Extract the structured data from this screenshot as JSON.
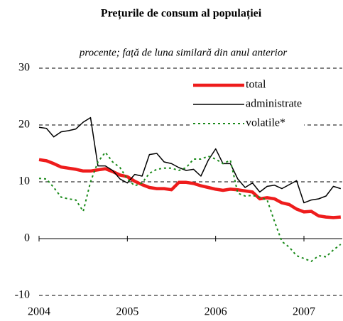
{
  "chart_data": {
    "type": "line",
    "title": "Prețurile de consum al populației",
    "subtitle": "procente; față de luna similară din anul anterior",
    "categories": [
      "2004",
      null,
      null,
      null,
      null,
      null,
      null,
      null,
      null,
      null,
      null,
      null,
      "2005",
      null,
      null,
      null,
      null,
      null,
      null,
      null,
      null,
      null,
      null,
      null,
      "2006",
      null,
      null,
      null,
      null,
      null,
      null,
      null,
      null,
      null,
      null,
      null,
      "2007",
      null,
      null,
      null,
      null,
      null
    ],
    "series": [
      {
        "name": "total",
        "color": "#ee1c1c",
        "width": 4.5,
        "dash": "none",
        "values": [
          13.9,
          13.7,
          13.2,
          12.6,
          12.4,
          12.2,
          11.9,
          11.9,
          12.1,
          12.3,
          11.8,
          11.2,
          10.9,
          10.1,
          9.5,
          9.0,
          8.8,
          8.8,
          8.6,
          9.9,
          9.9,
          9.7,
          9.3,
          9.0,
          8.7,
          8.5,
          8.7,
          8.6,
          8.4,
          8.2,
          7.0,
          7.2,
          7.0,
          6.3,
          6.0,
          5.2,
          4.7,
          4.8,
          4.0,
          3.8,
          3.7,
          3.8
        ]
      },
      {
        "name": "administrate",
        "color": "#000000",
        "width": 1.5,
        "dash": "none",
        "values": [
          19.6,
          19.4,
          17.9,
          18.8,
          19.0,
          19.3,
          20.5,
          21.3,
          12.8,
          12.8,
          12.0,
          10.5,
          9.8,
          11.3,
          11.0,
          14.8,
          15.0,
          13.5,
          13.2,
          12.5,
          12.0,
          12.2,
          11.0,
          13.8,
          15.8,
          13.2,
          13.2,
          10.5,
          9.0,
          9.8,
          8.2,
          9.2,
          9.4,
          8.8,
          9.5,
          10.2,
          6.3,
          6.8,
          7.0,
          7.5,
          9.2,
          8.8
        ]
      },
      {
        "name": "volatile*",
        "color": "#1a8a1a",
        "width": 2,
        "dash": "3,4",
        "values": [
          10.6,
          10.5,
          9.0,
          7.3,
          7.0,
          6.8,
          4.8,
          10.0,
          13.5,
          15.2,
          13.5,
          12.5,
          10.5,
          9.3,
          9.8,
          11.5,
          12.2,
          12.4,
          12.4,
          12.0,
          12.5,
          14.0,
          14.0,
          14.5,
          14.0,
          13.2,
          13.8,
          8.0,
          7.5,
          7.6,
          7.3,
          6.8,
          3.0,
          -0.5,
          -1.5,
          -3.0,
          -3.5,
          -4.0,
          -3.0,
          -3.2,
          -2.0,
          -1.0
        ]
      }
    ],
    "ylim": [
      -10,
      30
    ],
    "yticks": [
      -10,
      0,
      10,
      20,
      30
    ],
    "grid": true,
    "legend": "top-right"
  }
}
